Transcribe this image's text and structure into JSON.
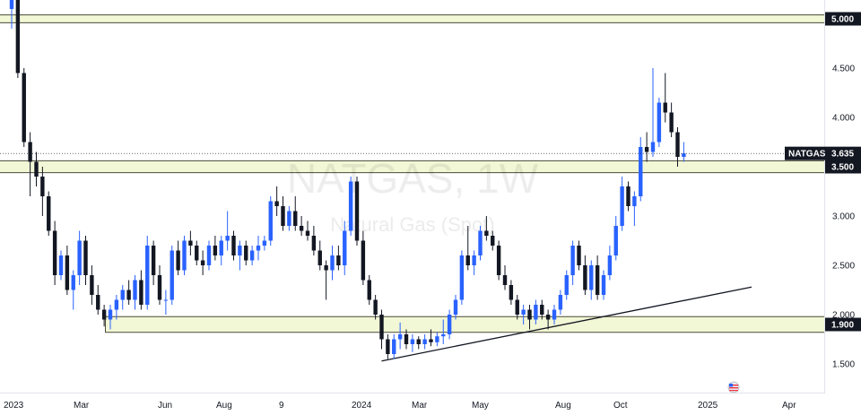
{
  "chart_data": {
    "type": "candlestick",
    "watermark": {
      "title": "NATGAS, 1W",
      "subtitle": "Natural Gas (Spot)"
    },
    "symbol": "NATGAS",
    "last_price": "3.635",
    "y_ticks": [
      "1.500",
      "2.000",
      "2.500",
      "3.000",
      "3.500",
      "4.000",
      "4.500",
      "5.000"
    ],
    "x_ticks": [
      "2023",
      "Mar",
      "Jun",
      "Aug",
      "9",
      "2024",
      "Mar",
      "May",
      "Aug",
      "Oct",
      "2025",
      "Apr"
    ],
    "price_tags": [
      {
        "label": "5.000"
      },
      {
        "label": "3.500"
      },
      {
        "label": "1.900"
      }
    ],
    "zones": [
      {
        "low": 4.96,
        "high": 5.04
      },
      {
        "low": 3.44,
        "high": 3.56
      },
      {
        "low": 1.82,
        "high": 1.98
      }
    ],
    "trendline": {
      "start": [
        "2024-02-26",
        1.53
      ],
      "end": [
        "2025-04-21",
        2.28
      ]
    },
    "colors": {
      "up": "#2962ff",
      "down": "#131722",
      "zone_fill": "#f2f7d5",
      "zone_border": "#4a4a3a",
      "trendline": "#131722"
    },
    "candles": [
      [
        5.1,
        5.6,
        4.9,
        5.4
      ],
      [
        5.4,
        5.5,
        4.4,
        4.45
      ],
      [
        4.45,
        4.5,
        3.7,
        3.75
      ],
      [
        3.75,
        3.85,
        3.2,
        3.55
      ],
      [
        3.55,
        3.65,
        3.3,
        3.4
      ],
      [
        3.4,
        3.5,
        3.0,
        3.2
      ],
      [
        3.2,
        3.25,
        2.8,
        2.85
      ],
      [
        2.85,
        2.95,
        2.3,
        2.4
      ],
      [
        2.4,
        2.65,
        2.35,
        2.6
      ],
      [
        2.6,
        2.7,
        2.2,
        2.25
      ],
      [
        2.25,
        2.45,
        2.05,
        2.4
      ],
      [
        2.4,
        2.85,
        2.3,
        2.75
      ],
      [
        2.75,
        2.8,
        2.3,
        2.4
      ],
      [
        2.4,
        2.5,
        2.1,
        2.2
      ],
      [
        2.2,
        2.3,
        2.0,
        2.05
      ],
      [
        2.05,
        2.1,
        1.88,
        1.95
      ],
      [
        1.95,
        2.1,
        1.85,
        2.05
      ],
      [
        2.05,
        2.2,
        1.95,
        2.15
      ],
      [
        2.15,
        2.3,
        2.05,
        2.25
      ],
      [
        2.25,
        2.35,
        2.1,
        2.15
      ],
      [
        2.15,
        2.4,
        2.05,
        2.35
      ],
      [
        2.35,
        2.45,
        2.05,
        2.1
      ],
      [
        2.1,
        2.8,
        2.05,
        2.7
      ],
      [
        2.7,
        2.75,
        2.3,
        2.4
      ],
      [
        2.4,
        2.5,
        2.1,
        2.15
      ],
      [
        2.15,
        2.25,
        2.0,
        2.15
      ],
      [
        2.15,
        2.7,
        2.1,
        2.65
      ],
      [
        2.65,
        2.75,
        2.4,
        2.45
      ],
      [
        2.45,
        2.8,
        2.4,
        2.75
      ],
      [
        2.75,
        2.85,
        2.6,
        2.7
      ],
      [
        2.7,
        2.75,
        2.5,
        2.55
      ],
      [
        2.55,
        2.65,
        2.4,
        2.5
      ],
      [
        2.5,
        2.75,
        2.45,
        2.7
      ],
      [
        2.7,
        2.8,
        2.55,
        2.6
      ],
      [
        2.6,
        2.8,
        2.5,
        2.75
      ],
      [
        2.75,
        3.05,
        2.65,
        2.8
      ],
      [
        2.8,
        2.85,
        2.55,
        2.6
      ],
      [
        2.6,
        2.75,
        2.45,
        2.7
      ],
      [
        2.7,
        2.75,
        2.5,
        2.55
      ],
      [
        2.55,
        2.7,
        2.5,
        2.65
      ],
      [
        2.65,
        2.8,
        2.55,
        2.7
      ],
      [
        2.7,
        2.8,
        2.65,
        2.75
      ],
      [
        2.75,
        3.2,
        2.7,
        3.15
      ],
      [
        3.15,
        3.3,
        3.0,
        3.1
      ],
      [
        3.1,
        3.2,
        2.85,
        2.9
      ],
      [
        2.9,
        3.1,
        2.85,
        3.05
      ],
      [
        3.05,
        3.2,
        2.85,
        2.9
      ],
      [
        2.9,
        3.0,
        2.8,
        2.85
      ],
      [
        2.85,
        2.95,
        2.75,
        2.8
      ],
      [
        2.8,
        2.9,
        2.6,
        2.65
      ],
      [
        2.65,
        2.75,
        2.45,
        2.5
      ],
      [
        2.5,
        2.55,
        2.15,
        2.45
      ],
      [
        2.45,
        2.7,
        2.35,
        2.6
      ],
      [
        2.6,
        2.7,
        2.45,
        2.5
      ],
      [
        2.5,
        2.95,
        2.4,
        2.85
      ],
      [
        2.85,
        3.4,
        2.8,
        3.35
      ],
      [
        3.35,
        3.4,
        2.7,
        2.75
      ],
      [
        2.75,
        2.85,
        2.3,
        2.35
      ],
      [
        2.35,
        2.4,
        2.1,
        2.15
      ],
      [
        2.15,
        2.2,
        1.95,
        2.0
      ],
      [
        2.0,
        2.05,
        1.65,
        1.75
      ],
      [
        1.75,
        1.8,
        1.55,
        1.6
      ],
      [
        1.6,
        1.8,
        1.55,
        1.75
      ],
      [
        1.75,
        1.92,
        1.65,
        1.8
      ],
      [
        1.8,
        1.85,
        1.65,
        1.7
      ],
      [
        1.7,
        1.8,
        1.62,
        1.75
      ],
      [
        1.75,
        1.78,
        1.65,
        1.7
      ],
      [
        1.7,
        1.8,
        1.65,
        1.75
      ],
      [
        1.75,
        1.85,
        1.68,
        1.72
      ],
      [
        1.72,
        1.82,
        1.68,
        1.78
      ],
      [
        1.78,
        1.95,
        1.7,
        1.8
      ],
      [
        1.8,
        2.05,
        1.75,
        2.0
      ],
      [
        2.0,
        2.2,
        1.95,
        2.15
      ],
      [
        2.15,
        2.65,
        2.1,
        2.6
      ],
      [
        2.6,
        2.9,
        2.45,
        2.5
      ],
      [
        2.5,
        2.65,
        2.4,
        2.6
      ],
      [
        2.6,
        2.9,
        2.55,
        2.85
      ],
      [
        2.85,
        3.0,
        2.75,
        2.8
      ],
      [
        2.8,
        2.85,
        2.65,
        2.7
      ],
      [
        2.7,
        2.75,
        2.35,
        2.4
      ],
      [
        2.4,
        2.5,
        2.25,
        2.3
      ],
      [
        2.3,
        2.35,
        2.1,
        2.15
      ],
      [
        2.15,
        2.2,
        1.95,
        2.0
      ],
      [
        2.0,
        2.1,
        1.9,
        2.05
      ],
      [
        2.05,
        2.1,
        1.85,
        1.95
      ],
      [
        1.95,
        2.15,
        1.9,
        2.1
      ],
      [
        2.1,
        2.15,
        1.95,
        2.0
      ],
      [
        2.0,
        2.05,
        1.85,
        1.95
      ],
      [
        1.95,
        2.1,
        1.9,
        2.05
      ],
      [
        2.05,
        2.25,
        2.0,
        2.2
      ],
      [
        2.2,
        2.45,
        2.15,
        2.4
      ],
      [
        2.4,
        2.75,
        2.3,
        2.7
      ],
      [
        2.7,
        2.75,
        2.45,
        2.5
      ],
      [
        2.5,
        2.6,
        2.2,
        2.25
      ],
      [
        2.25,
        2.55,
        2.15,
        2.5
      ],
      [
        2.5,
        2.6,
        2.15,
        2.2
      ],
      [
        2.2,
        2.45,
        2.15,
        2.4
      ],
      [
        2.4,
        2.7,
        2.35,
        2.6
      ],
      [
        2.6,
        3.0,
        2.55,
        2.9
      ],
      [
        2.9,
        3.4,
        2.85,
        3.3
      ],
      [
        3.3,
        3.35,
        3.05,
        3.1
      ],
      [
        3.1,
        3.25,
        2.9,
        3.2
      ],
      [
        3.2,
        3.8,
        3.15,
        3.7
      ],
      [
        3.7,
        3.85,
        3.55,
        3.65
      ],
      [
        3.65,
        4.5,
        3.6,
        3.75
      ],
      [
        3.75,
        4.2,
        3.7,
        4.15
      ],
      [
        4.15,
        4.45,
        3.95,
        4.05
      ],
      [
        4.05,
        4.15,
        3.8,
        3.85
      ],
      [
        3.85,
        3.9,
        3.5,
        3.6
      ],
      [
        3.6,
        3.75,
        3.55,
        3.635
      ]
    ]
  }
}
